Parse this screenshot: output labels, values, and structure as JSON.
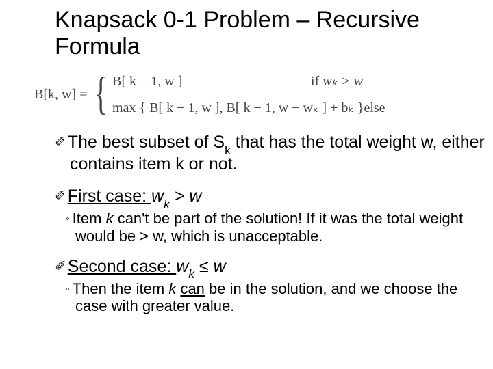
{
  "colors": {
    "background": "#ffffff",
    "text": "#000000",
    "formula_text": "#444444"
  },
  "title": "Knapsack 0-1 Problem – Recursive Formula",
  "formula": {
    "lhs": "B[k, w] =",
    "case1_expr": "B[ k − 1, w ]",
    "case1_cond_prefix": "if ",
    "case1_cond_math": "wₖ > w",
    "case2_expr": "max { B[ k − 1, w ], B[ k − 1, w − wₖ ] + bₖ }",
    "case2_cond": "else"
  },
  "p1": {
    "bullet": "✐",
    "pre": "The best subset of S",
    "sub": "k",
    "post": " that has the total weight w, either contains item k or not."
  },
  "p2": {
    "bullet": "✐",
    "label": "First case:  ",
    "math_w": "w",
    "math_sub": "k",
    "math_rest": " > w",
    "sub_bullet": "◦",
    "sub_pre": "Item ",
    "sub_k": "k",
    "sub_post": " can't be part of the solution!  If it was the total weight would be > w, which is unacceptable."
  },
  "p3": {
    "bullet": "✐",
    "label": "Second case:  ",
    "math_w": "w",
    "math_sub": "k",
    "math_rest": " ≤ w",
    "sub_bullet": "◦",
    "sub_pre": "Then the item ",
    "sub_k": "k",
    "sub_mid": " ",
    "sub_can": "can",
    "sub_post": " be in the solution, and we choose the case with greater value."
  }
}
